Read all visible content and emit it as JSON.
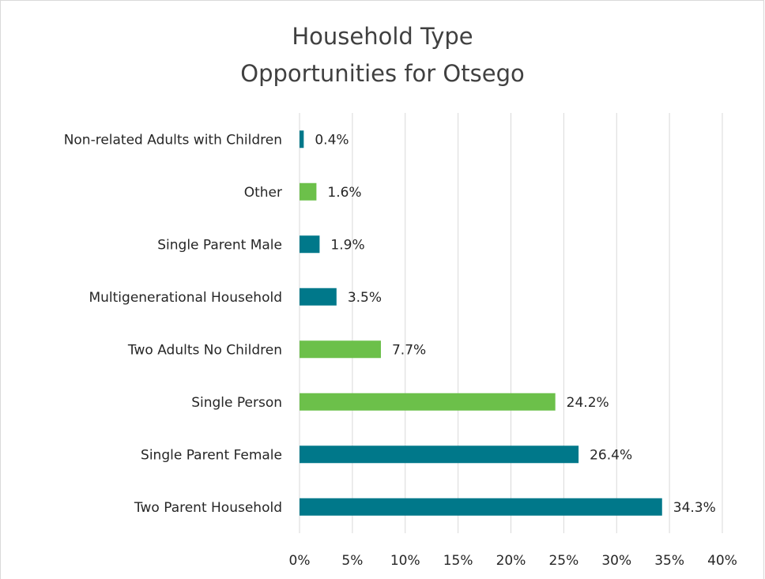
{
  "chart_data": {
    "type": "barh",
    "title": "Household Type",
    "subtitle": "Opportunities for Otsego",
    "categories": [
      "Non-related Adults with Children",
      "Other",
      "Single Parent Male",
      "Multigenerational Household",
      "Two Adults No Children",
      "Single Person",
      "Single Parent Female",
      "Two Parent Household"
    ],
    "values": [
      0.4,
      1.6,
      1.9,
      3.5,
      7.7,
      24.2,
      26.4,
      34.3
    ],
    "value_labels": [
      "0.4%",
      "1.6%",
      "1.9%",
      "3.5%",
      "7.7%",
      "24.2%",
      "26.4%",
      "34.3%"
    ],
    "colors": [
      "#00788a",
      "#6cc04a",
      "#00788a",
      "#00788a",
      "#6cc04a",
      "#6cc04a",
      "#00788a",
      "#00788a"
    ],
    "xlim": [
      0,
      40
    ],
    "xticks": [
      {
        "value": 0,
        "label": "0%"
      },
      {
        "value": 5,
        "label": "5%"
      },
      {
        "value": 10,
        "label": "10%"
      },
      {
        "value": 15,
        "label": "15%"
      },
      {
        "value": 20,
        "label": "20%"
      },
      {
        "value": 25,
        "label": "25%"
      },
      {
        "value": 30,
        "label": "30%"
      },
      {
        "value": 35,
        "label": "35%"
      },
      {
        "value": 40,
        "label": "40%"
      }
    ],
    "grid": true
  }
}
